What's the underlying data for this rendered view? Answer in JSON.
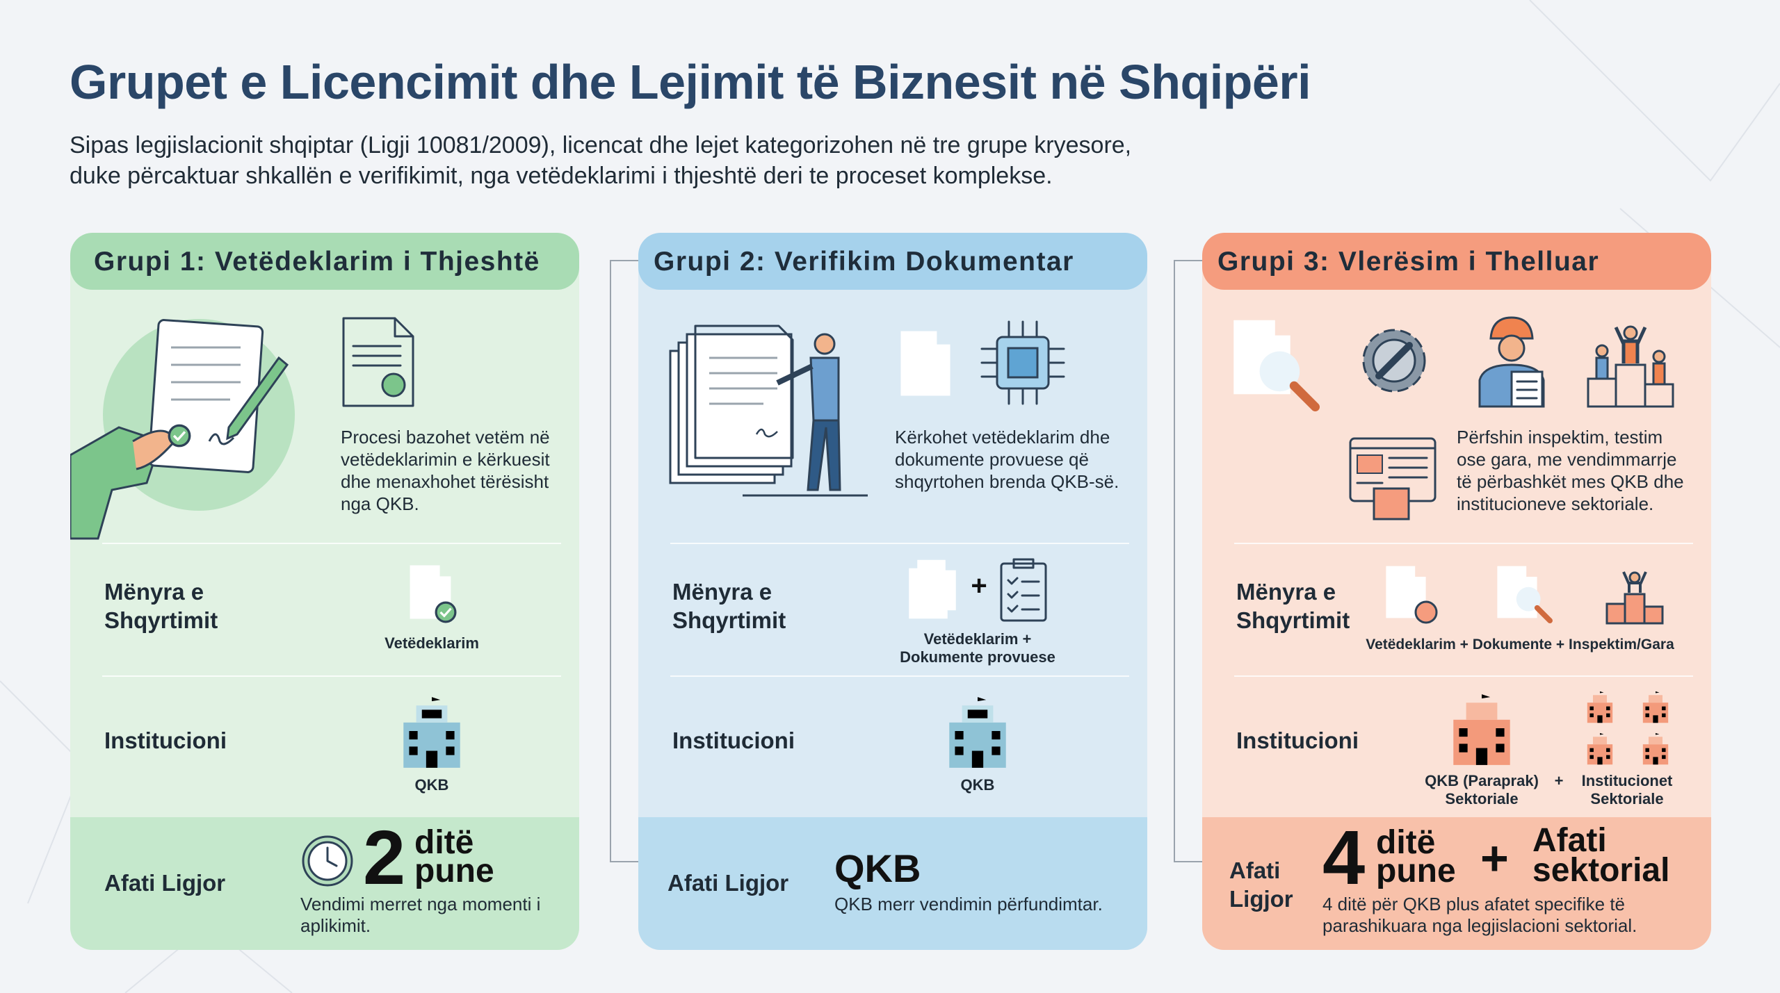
{
  "header": {
    "title": "Grupet e Licencimit dhe Lejimit të Biznesit në Shqipëri",
    "subtitle_lines": [
      "Sipas legjislacionit shqiptar (Ligji 10081/2009), licencat dhe lejet kategorizohen në tre grupe kryesore,",
      "duke përcaktuar shkallën e verifikimit, nga vetëdeklarimi i thjeshtë deri te proceset komplekse."
    ]
  },
  "groups": [
    {
      "title": "Grupi 1: Vetëdeklarim i Thjeshtë",
      "description": "Procesi bazohet vetëm në vetëdeklarimin e kërkuesit dhe menaxhohet tërësisht nga QKB.",
      "review_label": "Mënyra e Shqyrtimit",
      "review_caption": "Vetëdeklarim",
      "institution_label": "Institucioni",
      "institution_caption": "QKB",
      "deadline_label": "Afati Ligjor",
      "deadline_number": 2,
      "deadline_unit": "ditë pune",
      "deadline_note": "Vendimi merret nga momenti i aplikimit."
    },
    {
      "title": "Grupi 2: Verifikim Dokumentar",
      "description": "Kërkohet vetëdeklarim dhe dokumente provuese që shqyrtohen brenda QKB-së.",
      "review_label": "Mënyra e Shqyrtimit",
      "review_join": "+",
      "review_caption": "Vetëdeklarim + Dokumente provuese",
      "institution_label": "Institucioni",
      "institution_caption": "QKB",
      "deadline_label": "Afati Ligjor",
      "deadline_headline": "QKB",
      "deadline_note": "QKB merr vendimin përfundimtar."
    },
    {
      "title": "Grupi 3: Vlerësim i Thelluar",
      "description": "Përfshin inspektim, testim ose gara, me vendimmarrje të përbashkët mes QKB dhe institucioneve sektoriale.",
      "review_label": "Mënyra e Shqyrtimit",
      "review_caption": "Vetëdeklarim + Dokumente + Inspektim/Gara",
      "institution_label": "Institucioni",
      "institution_captions": [
        "QKB (Paraprak) Sektoriale",
        "+",
        "Institucionet Sektoriale"
      ],
      "deadline_label": "Afati Ligjor",
      "deadline_number": 4,
      "deadline_unit": "ditë pune",
      "deadline_join": "+",
      "deadline_extra": "Afati sektorial",
      "deadline_note": "4 ditë për QKB plus afatet specifike të parashikuara nga legjislacioni sektorial."
    }
  ]
}
